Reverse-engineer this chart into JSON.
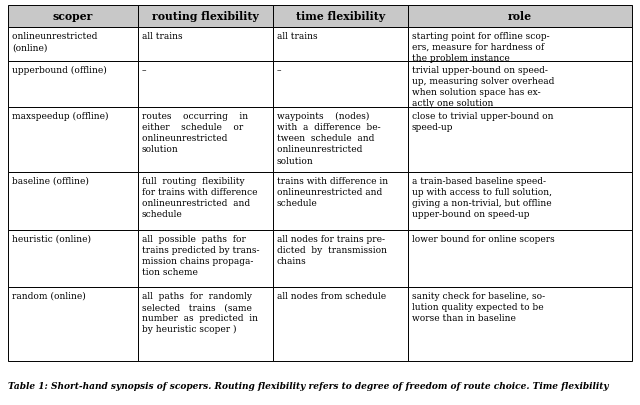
{
  "title": "Table 1: Short-hand synopsis of scopers. Routing flexibility refers to degree of freedom of route choice. Time flexibility",
  "headers": [
    "scoper",
    "routing flexibility",
    "time flexibility",
    "role"
  ],
  "rows": [
    {
      "scoper": "online⁠unrestricted\n(online)",
      "routing": "all trains",
      "time": "all trains",
      "role": "starting point for offline scop-\ners, measure for hardness of\nthe problem instance"
    },
    {
      "scoper": "upper⁠bound (offline)",
      "routing": "–",
      "time": "–",
      "role": "trivial upper-bound on speed-\nup, measuring solver overhead\nwhen solution space has ex-\nactly one solution"
    },
    {
      "scoper": "max⁠speedup (offline)",
      "routing": "routes    occurring    in\neither    schedule    or\nonline⁠unrestricted\nsolution",
      "time": "waypoints    (nodes)\nwith  a  difference  be-\ntween  schedule  and\nonline⁠unrestricted\nsolution",
      "role": "close to trivial upper-bound on\nspeed-up"
    },
    {
      "scoper": "baseline (offline)",
      "routing": "full  routing  flexibility\nfor trains with difference\nonline⁠unrestricted  and\nschedule",
      "time": "trains with difference in\nonline⁠unrestricted and\nschedule",
      "role": "a train-based baseline speed-\nup with access to full solution,\ngiving a non-trivial, but offline\nupper-bound on speed-up"
    },
    {
      "scoper": "heuristic (online)",
      "routing": "all  possible  paths  for\ntrains predicted by trans-\nmission chains propaga-\ntion scheme",
      "time": "all nodes for trains pre-\ndicted  by  transmission\nchains",
      "role": "lower bound for online scopers"
    },
    {
      "scoper": "random (online)",
      "routing": "all  paths  for  randomly\nselected   trains   (same\nnumber  as  predicted  in\nby heuristic scoper )",
      "time": "all nodes from schedule",
      "role": "sanity check for baseline, so-\nlution quality expected to be\nworse than in baseline"
    }
  ],
  "background": "#ffffff",
  "header_bg": "#c8c8c8",
  "font_size": 6.5,
  "header_font_size": 7.8,
  "caption_fontsize": 6.5
}
